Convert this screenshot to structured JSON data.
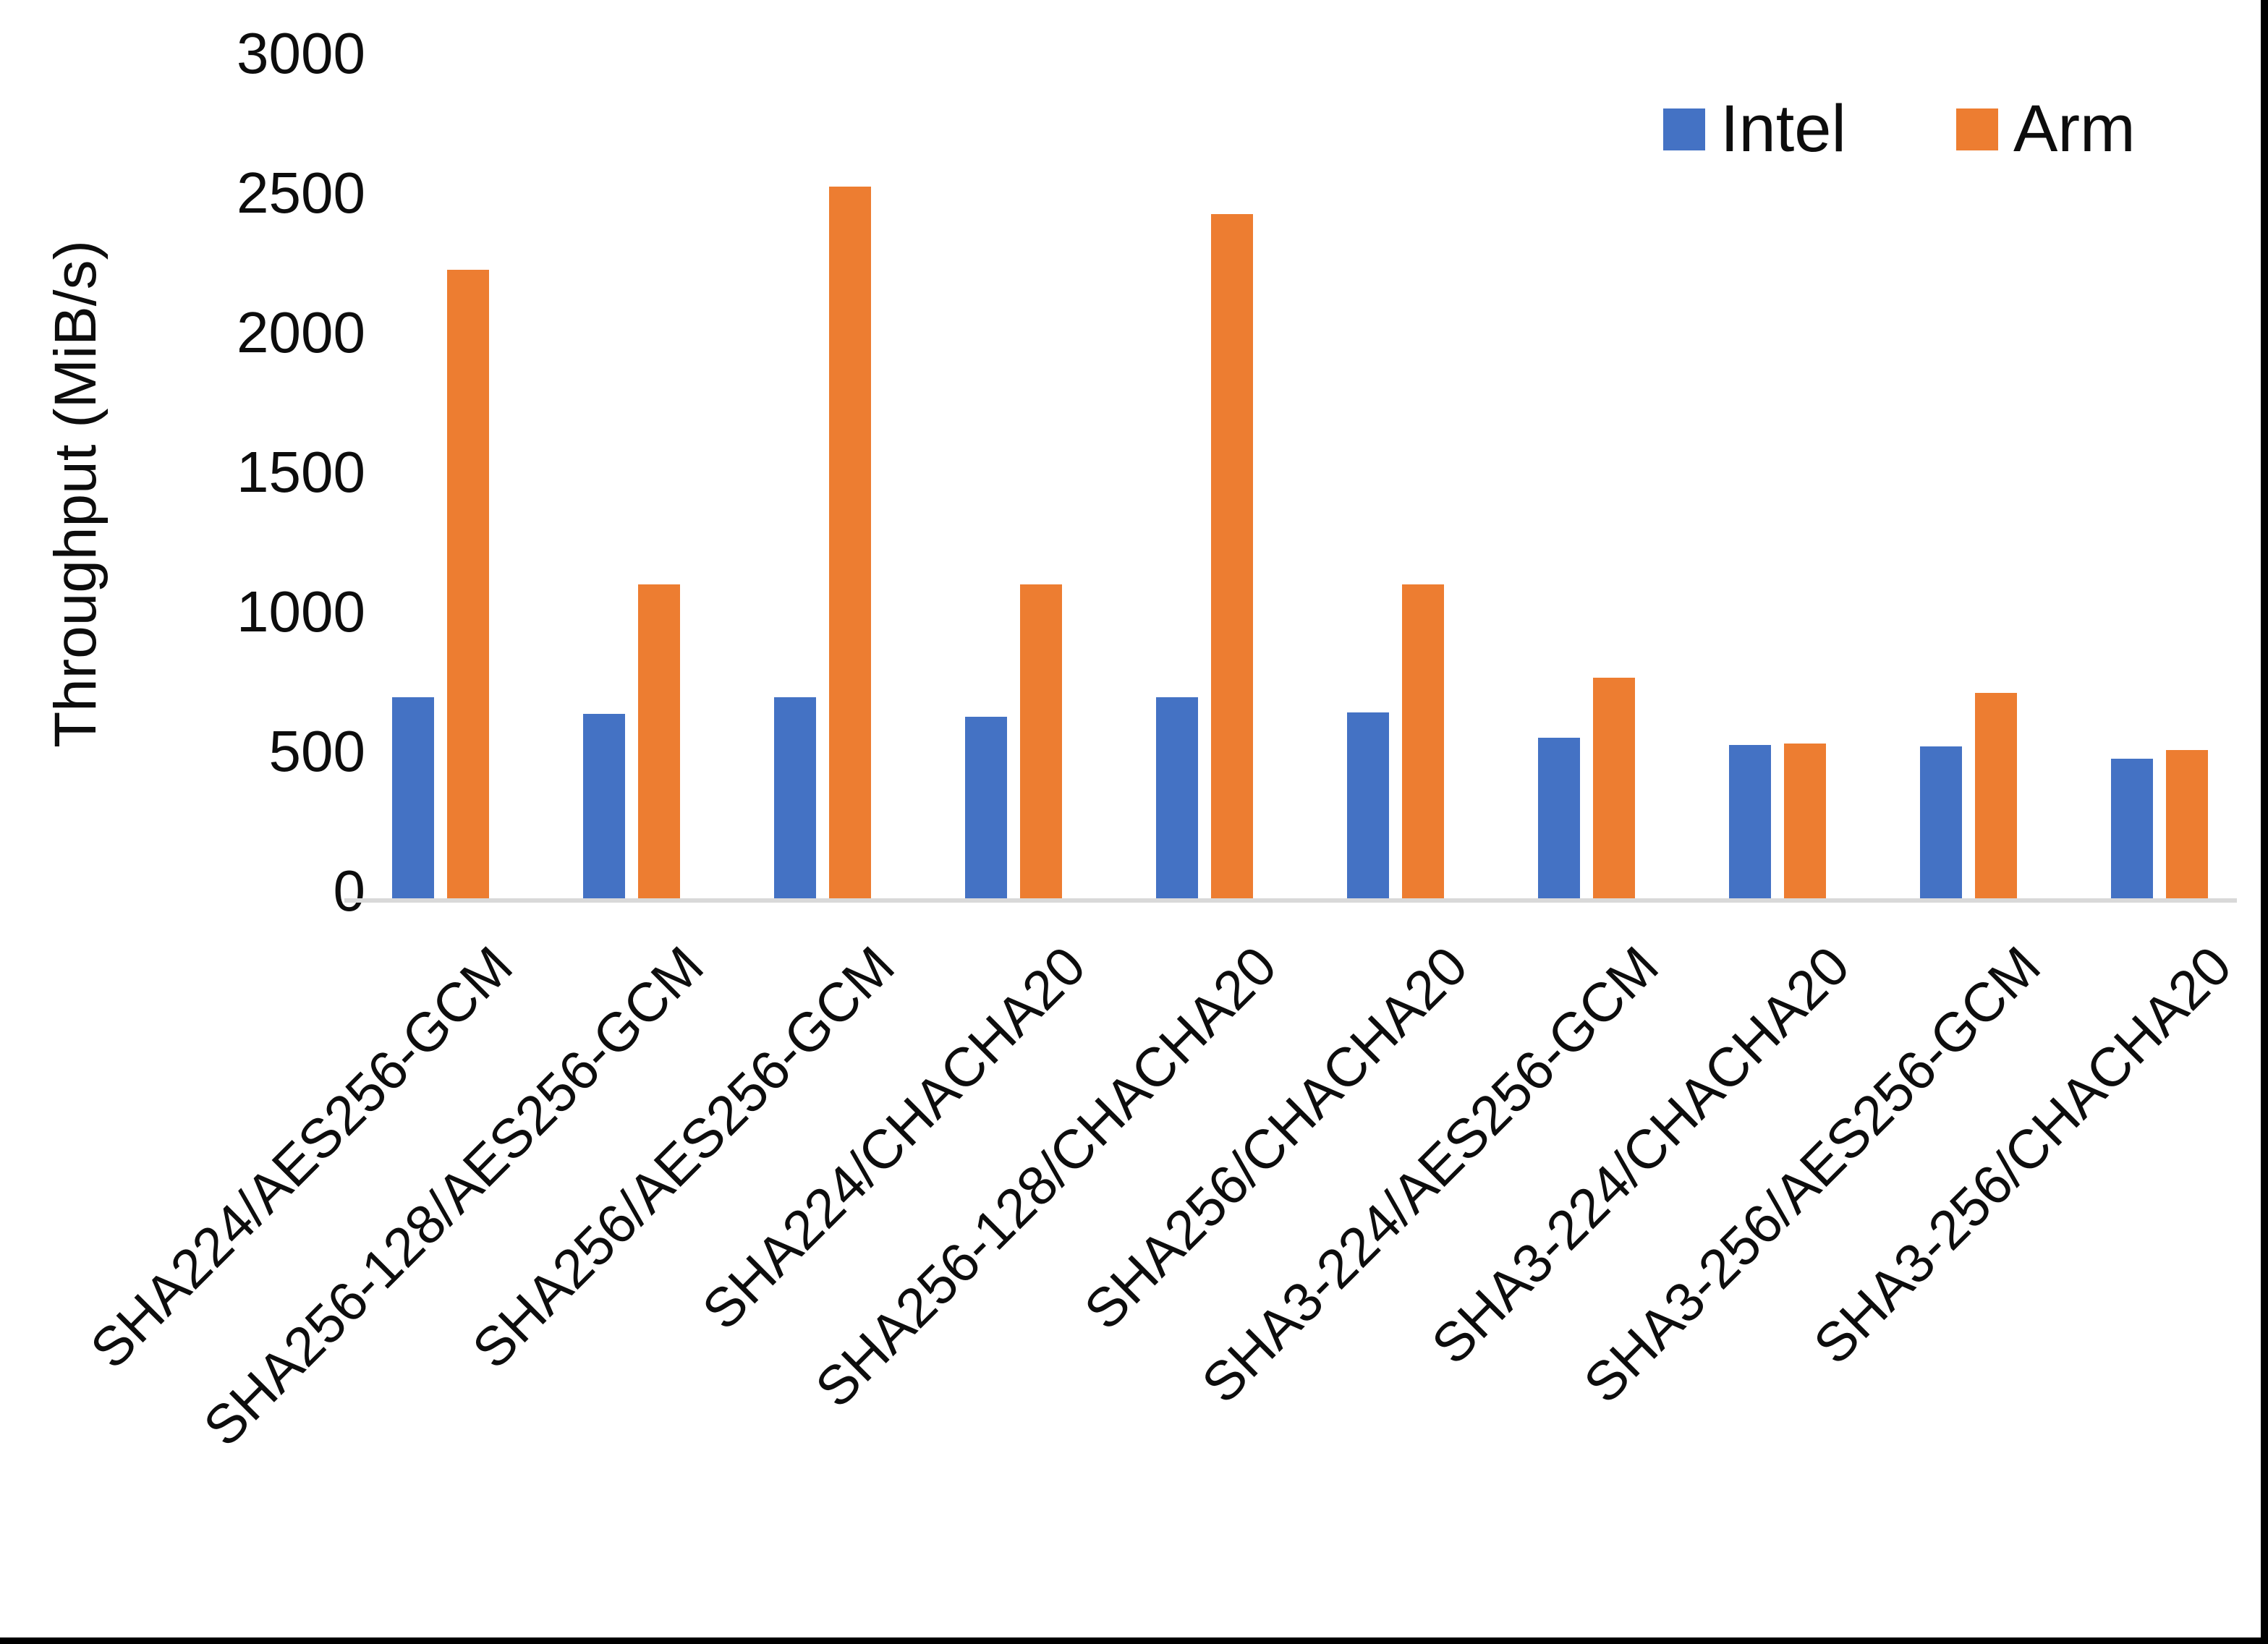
{
  "chart_data": {
    "type": "bar",
    "title": "",
    "ylabel": "Throughput (MiB/s)",
    "xlabel": "",
    "ylim": [
      0,
      3000
    ],
    "yticks": [
      0,
      500,
      1000,
      1500,
      2000,
      2500,
      3000
    ],
    "grid": false,
    "legend_position": "top-right",
    "axis_line_color": "#d9d9d9",
    "categories": [
      "SHA224/AES256-GCM",
      "SHA256-128/AES256-GCM",
      "SHA256/AES256-GCM",
      "SHA224/CHACHA20",
      "SHA256-128/CHACHA20",
      "SHA256/CHACHA20",
      "SHA3-224/AES256-GCM",
      "SHA3-224/CHACHA20",
      "SHA3-256/AES256-GCM",
      "SHA3-256/CHACHA20"
    ],
    "series": [
      {
        "name": "Intel",
        "color": "#4472C4",
        "values": [
          720,
          660,
          720,
          650,
          720,
          665,
          575,
          550,
          545,
          500
        ]
      },
      {
        "name": "Arm",
        "color": "#ED7D31",
        "values": [
          2250,
          1125,
          2550,
          1125,
          2450,
          1125,
          790,
          555,
          735,
          530
        ]
      }
    ]
  }
}
